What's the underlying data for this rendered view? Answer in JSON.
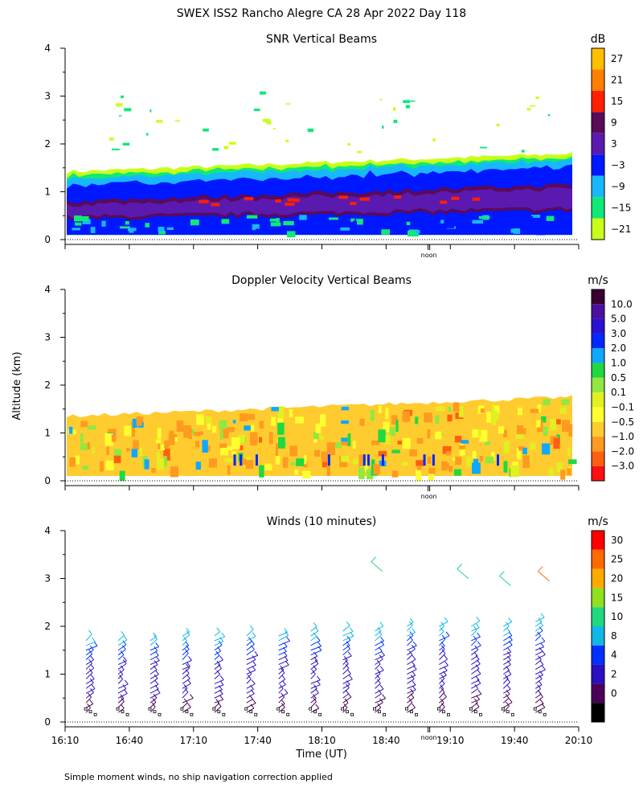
{
  "figure": {
    "title": "SWEX ISS2 Rancho Alegre CA  28 Apr 2022 Day 118",
    "footnote": "Simple moment winds, no ship navigation correction applied",
    "ylabel": "Altitude (km)",
    "xlabel": "Time (UT)",
    "noon_label": "noon"
  },
  "chart_data": [
    {
      "type": "heatmap",
      "title": "SNR Vertical Beams",
      "ylim": [
        0,
        4
      ],
      "yticks": [
        "0",
        "1",
        "2",
        "3",
        "4"
      ],
      "colorbar": {
        "unit": "dB",
        "labels": [
          "27",
          "21",
          "15",
          "9",
          "3",
          "−3",
          "−9",
          "−15",
          "−21"
        ],
        "colors": [
          "#ffbf00",
          "#ff7f00",
          "#ff2000",
          "#5a0a5a",
          "#5a1ab0",
          "#0018ff",
          "#18b8ff",
          "#10e878",
          "#c8ff18"
        ]
      },
      "layers": [
        {
          "name": "clear-air",
          "level": 3,
          "from": [
            0.14,
            0.24
          ],
          "to": [
            1.45,
            1.75
          ]
        },
        {
          "name": "mid",
          "level": -6,
          "from": [
            0.14,
            0.15
          ],
          "to": [
            1.3,
            1.6
          ]
        },
        {
          "name": "inversion",
          "level": 9,
          "from": [
            0.45,
            0.55
          ],
          "to": [
            0.95,
            1.15
          ]
        },
        {
          "name": "peak",
          "level": 15,
          "from": [
            0.62,
            0.62
          ],
          "to": [
            0.85,
            0.95
          ]
        }
      ]
    },
    {
      "type": "heatmap",
      "title": "Doppler Velocity Vertical Beams",
      "ylim": [
        0,
        4
      ],
      "yticks": [
        "0",
        "1",
        "2",
        "3",
        "4"
      ],
      "colorbar": {
        "unit": "m/s",
        "labels": [
          "10.0",
          "5.0",
          "3.0",
          "2.0",
          "1.0",
          "0.5",
          "0.1",
          "−0.1",
          "−0.5",
          "−1.0",
          "−2.0",
          "−3.0"
        ],
        "colors": [
          "#3a0030",
          "#4a10a0",
          "#2a10d0",
          "#0028ff",
          "#10a8ff",
          "#20d840",
          "#90e840",
          "#e0f020",
          "#ffff30",
          "#ffcc30",
          "#ff9a20",
          "#ff6010",
          "#ff1010"
        ]
      },
      "top": [
        1.35,
        1.75
      ]
    },
    {
      "type": "scatter",
      "title": "Winds (10 minutes)",
      "ylim": [
        0,
        4
      ],
      "yticks": [
        "0",
        "1",
        "2",
        "3",
        "4"
      ],
      "colorbar": {
        "unit": "m/s",
        "labels": [
          "30",
          "25",
          "20",
          "15",
          "10",
          "8",
          "4",
          "2",
          "0"
        ],
        "colors": [
          "#ff0000",
          "#ff6a00",
          "#ffaa00",
          "#90e020",
          "#20d880",
          "#10b8e8",
          "#0030ff",
          "#2a10c0",
          "#4a005a",
          "#000000"
        ]
      },
      "profile_times": [
        16.33,
        16.58,
        16.83,
        17.08,
        17.33,
        17.58,
        17.83,
        18.08,
        18.33,
        18.58,
        18.83,
        19.08,
        19.33,
        19.58,
        19.83
      ],
      "profile_tops": [
        1.8,
        1.8,
        1.8,
        1.85,
        1.85,
        1.9,
        1.9,
        1.95,
        1.95,
        2.0,
        2.05,
        2.1,
        2.1,
        2.1,
        2.2
      ],
      "upper_barbs": [
        {
          "t": 18.55,
          "alt": 3.35
        },
        {
          "t": 19.22,
          "alt": 3.2
        },
        {
          "t": 19.55,
          "alt": 3.05
        },
        {
          "t": 19.85,
          "alt": 3.15
        }
      ]
    }
  ],
  "xaxis": {
    "range": [
      16.1667,
      20.1667
    ],
    "tick_labels": [
      "16:10",
      "16:40",
      "17:10",
      "17:40",
      "18:10",
      "18:40",
      "19:10",
      "19:40",
      "20:10"
    ],
    "noon_time": 19.0
  }
}
